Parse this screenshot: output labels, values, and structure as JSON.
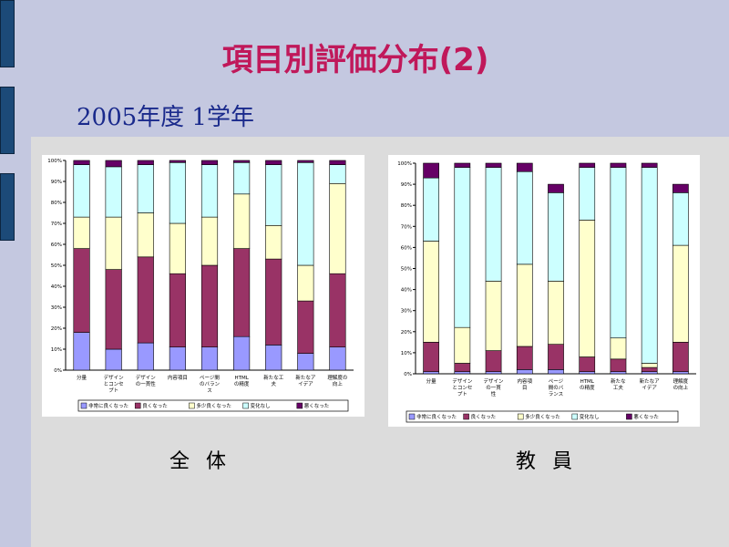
{
  "slide": {
    "title": "項目別評価分布(2)",
    "subtitle": "2005年度 1学年",
    "caption_all": "全体",
    "caption_staff": "教員"
  },
  "colors": {
    "series": [
      "#9999ff",
      "#993366",
      "#ffffcc",
      "#ccffff",
      "#660066"
    ]
  },
  "chart_data": [
    {
      "type": "bar",
      "stacked": true,
      "categories": [
        "分量",
        "デザイン とコンセ プト",
        "デザイン の一貫性",
        "内容項目",
        "ページ間 のバラン ス",
        "HTML の精度",
        "新たな工 夫",
        "新たなア イデア",
        "理解度の 向上"
      ],
      "series": [
        {
          "name": "非常に良くなった",
          "values": [
            18,
            10,
            13,
            11,
            11,
            16,
            12,
            8,
            11
          ]
        },
        {
          "name": "良くなった",
          "values": [
            40,
            38,
            41,
            35,
            39,
            42,
            41,
            25,
            35
          ]
        },
        {
          "name": "多少良くなった",
          "values": [
            15,
            25,
            21,
            24,
            23,
            26,
            16,
            17,
            43
          ]
        },
        {
          "name": "変化なし",
          "values": [
            25,
            24,
            23,
            29,
            25,
            15,
            29,
            49,
            9
          ]
        },
        {
          "name": "悪くなった",
          "values": [
            2,
            3,
            2,
            1,
            2,
            1,
            2,
            1,
            2
          ]
        }
      ],
      "ylim": [
        0,
        100
      ],
      "yticks": [
        "0%",
        "10%",
        "20%",
        "30%",
        "40%",
        "50%",
        "60%",
        "70%",
        "80%",
        "90%",
        "100%"
      ],
      "legend": "bottom",
      "grid": false
    },
    {
      "type": "bar",
      "stacked": true,
      "categories": [
        "分量",
        "デザイン とコンセ プト",
        "デザイン の一貫 性",
        "内容項 目",
        "ページ 間のバ ランス",
        "HTML の精度",
        "新たな 工夫",
        "新たなア イデア",
        "理解度 の向上"
      ],
      "series": [
        {
          "name": "非常に良くなった",
          "values": [
            1,
            1,
            1,
            2,
            2,
            1,
            1,
            1,
            1
          ]
        },
        {
          "name": "良くなった",
          "values": [
            14,
            4,
            10,
            11,
            12,
            7,
            6,
            2,
            14
          ]
        },
        {
          "name": "多少良くなった",
          "values": [
            48,
            17,
            33,
            39,
            30,
            65,
            10,
            2,
            46
          ]
        },
        {
          "name": "変化なし",
          "values": [
            30,
            76,
            54,
            44,
            42,
            25,
            81,
            93,
            25
          ]
        },
        {
          "name": "悪くなった",
          "values": [
            7,
            2,
            2,
            4,
            4,
            2,
            2,
            2,
            4
          ]
        }
      ],
      "ylim": [
        0,
        100
      ],
      "yticks": [
        "0%",
        "10%",
        "20%",
        "30%",
        "40%",
        "50%",
        "60%",
        "70%",
        "80%",
        "90%",
        "100%"
      ],
      "legend": "bottom",
      "grid": false
    }
  ]
}
